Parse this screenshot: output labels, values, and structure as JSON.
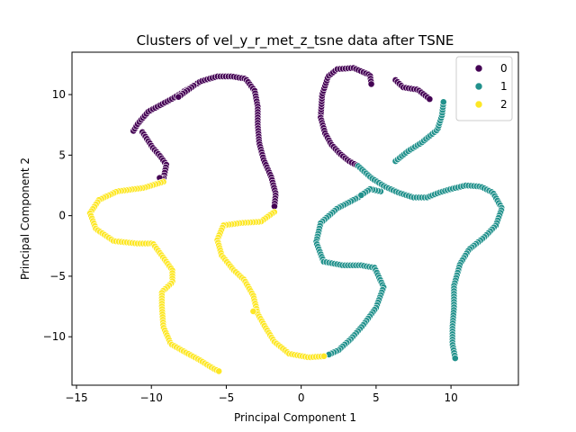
{
  "chart_data": {
    "type": "scatter",
    "title": "Clusters of vel_y_r_met_z_tsne data after TSNE",
    "xlabel": "Principal Component 1",
    "ylabel": "Principal Component 2",
    "xlim": [
      -15.3,
      14.5
    ],
    "ylim": [
      -14.0,
      13.5
    ],
    "xticks": [
      -15,
      -10,
      -5,
      0,
      5,
      10
    ],
    "yticks": [
      -10,
      -5,
      0,
      5,
      10
    ],
    "grid": false,
    "legend_position": "top-right",
    "series": [
      {
        "name": "0",
        "color": "#440154",
        "curves": [
          [
            [
              -11.2,
              7.0
            ],
            [
              -10.9,
              7.6
            ],
            [
              -10.2,
              8.6
            ],
            [
              -9.3,
              9.2
            ],
            [
              -8.7,
              9.6
            ],
            [
              -7.6,
              10.4
            ],
            [
              -6.7,
              11.1
            ],
            [
              -5.6,
              11.5
            ],
            [
              -4.6,
              11.5
            ],
            [
              -3.7,
              11.3
            ],
            [
              -3.1,
              10.3
            ],
            [
              -2.9,
              9.0
            ],
            [
              -2.9,
              7.5
            ],
            [
              -2.8,
              6.0
            ],
            [
              -2.5,
              4.6
            ],
            [
              -2.0,
              3.2
            ],
            [
              -1.7,
              1.8
            ],
            [
              -1.8,
              0.6
            ]
          ],
          [
            [
              -10.6,
              6.9
            ],
            [
              -9.9,
              5.6
            ],
            [
              -9.4,
              4.9
            ],
            [
              -9.0,
              4.2
            ],
            [
              -9.2,
              3.0
            ],
            [
              -9.6,
              3.2
            ]
          ],
          [
            [
              -7.8,
              10.3
            ],
            [
              -7.1,
              10.8
            ],
            [
              -8.2,
              9.8
            ]
          ],
          [
            [
              1.3,
              8.1
            ],
            [
              1.4,
              10.0
            ],
            [
              1.8,
              11.5
            ],
            [
              2.4,
              12.1
            ],
            [
              3.5,
              12.2
            ],
            [
              4.6,
              11.6
            ],
            [
              4.7,
              10.7
            ]
          ],
          [
            [
              1.3,
              8.1
            ],
            [
              1.6,
              6.8
            ],
            [
              2.0,
              5.9
            ],
            [
              2.6,
              5.1
            ],
            [
              3.2,
              4.5
            ],
            [
              3.8,
              4.1
            ]
          ],
          [
            [
              6.3,
              11.2
            ],
            [
              6.8,
              10.6
            ],
            [
              7.8,
              10.4
            ],
            [
              8.6,
              9.6
            ]
          ]
        ]
      },
      {
        "name": "1",
        "color": "#21918c",
        "curves": [
          [
            [
              3.8,
              4.1
            ],
            [
              4.7,
              3.1
            ],
            [
              5.6,
              2.4
            ],
            [
              6.5,
              1.9
            ],
            [
              7.5,
              1.5
            ],
            [
              8.4,
              1.5
            ],
            [
              9.2,
              1.9
            ],
            [
              10.0,
              2.2
            ],
            [
              11.0,
              2.5
            ],
            [
              12.0,
              2.4
            ],
            [
              12.8,
              1.9
            ],
            [
              13.4,
              0.6
            ],
            [
              13.0,
              -0.8
            ],
            [
              12.2,
              -1.8
            ],
            [
              11.2,
              -2.8
            ],
            [
              10.6,
              -4.0
            ],
            [
              10.2,
              -5.8
            ],
            [
              10.2,
              -7.6
            ],
            [
              10.1,
              -9.2
            ],
            [
              10.1,
              -10.6
            ],
            [
              10.3,
              -11.9
            ]
          ],
          [
            [
              6.3,
              4.5
            ],
            [
              7.1,
              5.3
            ],
            [
              8.0,
              6.0
            ],
            [
              9.1,
              7.1
            ],
            [
              9.4,
              8.3
            ],
            [
              9.5,
              9.4
            ]
          ],
          [
            [
              3.8,
              1.5
            ],
            [
              2.4,
              0.6
            ],
            [
              1.3,
              -0.6
            ],
            [
              1.0,
              -2.2
            ],
            [
              1.5,
              -3.8
            ],
            [
              2.8,
              -4.1
            ],
            [
              4.0,
              -4.1
            ],
            [
              4.9,
              -4.3
            ],
            [
              5.5,
              -5.9
            ],
            [
              5.0,
              -7.6
            ],
            [
              4.1,
              -9.1
            ],
            [
              3.3,
              -10.2
            ],
            [
              2.5,
              -11.1
            ],
            [
              1.8,
              -11.5
            ]
          ],
          [
            [
              5.3,
              2.0
            ],
            [
              4.6,
              2.2
            ],
            [
              3.9,
              1.6
            ]
          ]
        ]
      },
      {
        "name": "2",
        "color": "#fde725",
        "curves": [
          [
            [
              -9.2,
              2.8
            ],
            [
              -10.5,
              2.3
            ],
            [
              -12.3,
              2.0
            ],
            [
              -13.5,
              1.3
            ],
            [
              -14.1,
              0.2
            ],
            [
              -13.7,
              -1.1
            ],
            [
              -12.5,
              -2.1
            ],
            [
              -10.9,
              -2.3
            ],
            [
              -9.9,
              -2.3
            ],
            [
              -9.3,
              -3.3
            ],
            [
              -8.6,
              -4.5
            ],
            [
              -8.6,
              -5.5
            ],
            [
              -9.3,
              -6.3
            ],
            [
              -9.3,
              -7.5
            ],
            [
              -9.2,
              -9.2
            ],
            [
              -8.7,
              -10.6
            ],
            [
              -7.7,
              -11.3
            ],
            [
              -6.8,
              -11.9
            ],
            [
              -5.9,
              -12.6
            ],
            [
              -5.4,
              -12.9
            ]
          ],
          [
            [
              -1.8,
              0.3
            ],
            [
              -2.7,
              -0.5
            ],
            [
              -4.0,
              -0.6
            ],
            [
              -5.2,
              -0.8
            ],
            [
              -5.6,
              -2.0
            ],
            [
              -5.3,
              -3.3
            ],
            [
              -4.5,
              -4.5
            ],
            [
              -3.8,
              -5.3
            ],
            [
              -3.2,
              -6.6
            ],
            [
              -2.9,
              -8.1
            ],
            [
              -2.4,
              -9.2
            ],
            [
              -1.8,
              -10.4
            ],
            [
              -0.8,
              -11.4
            ],
            [
              0.5,
              -11.7
            ],
            [
              1.6,
              -11.6
            ]
          ],
          [
            [
              -3.2,
              -7.9
            ]
          ]
        ]
      }
    ]
  }
}
